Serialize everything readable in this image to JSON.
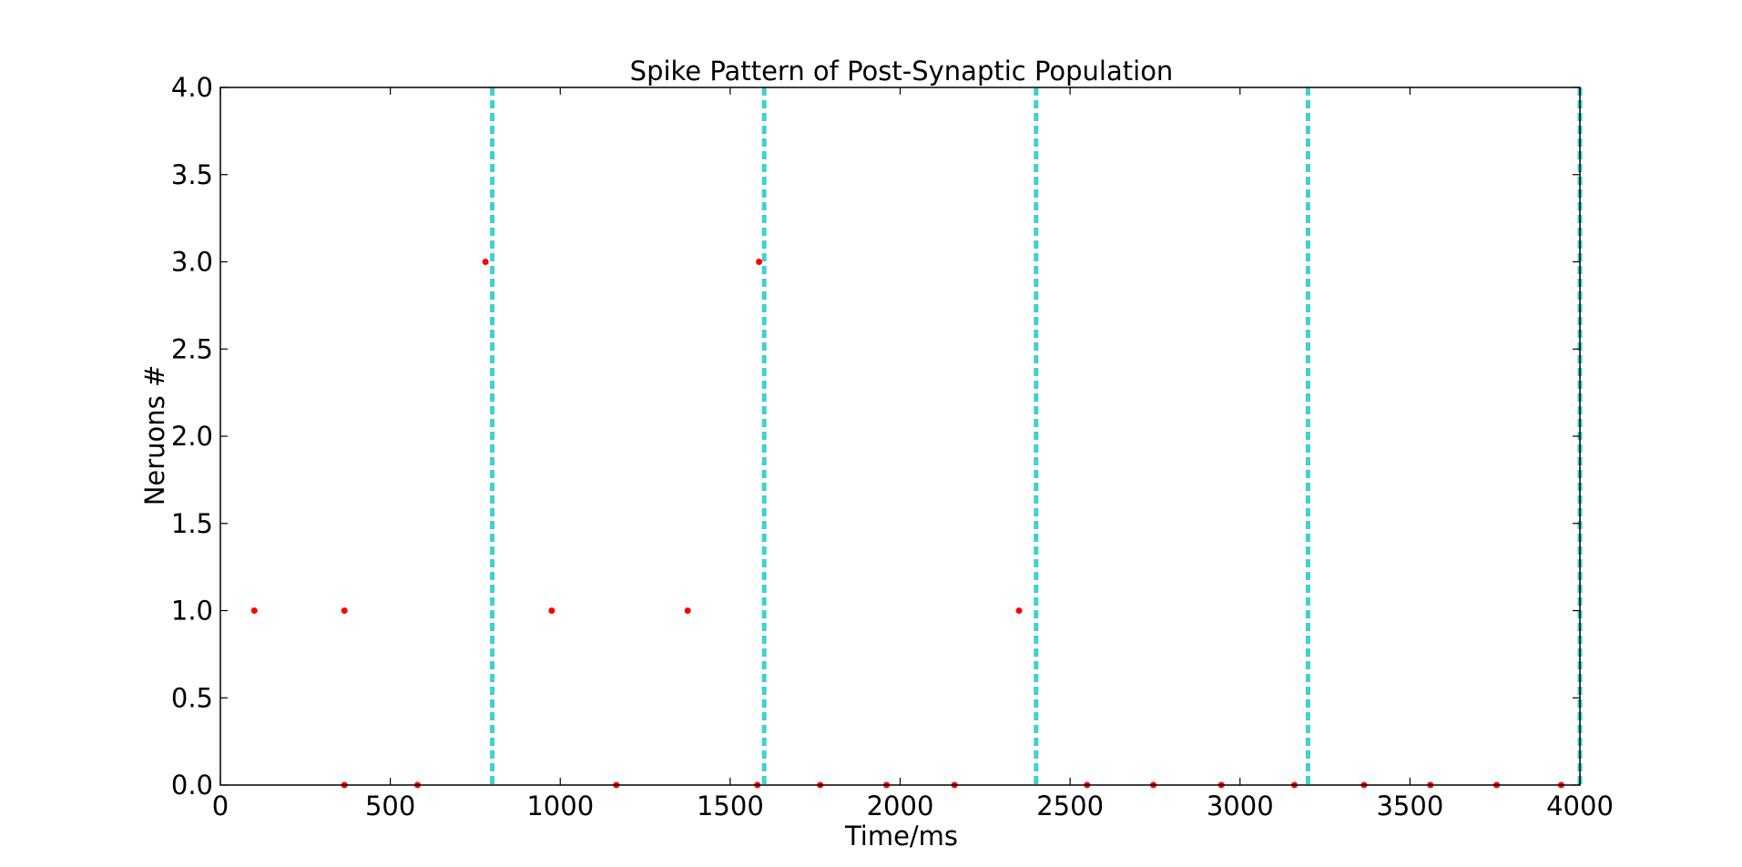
{
  "chart_data": {
    "type": "scatter",
    "title": "Spike Pattern of Post-Synaptic Population",
    "xlabel": "Time/ms",
    "ylabel": "Neruons #",
    "xlim": [
      0,
      4000
    ],
    "ylim": [
      0,
      4
    ],
    "x_ticks": [
      "0",
      "500",
      "1000",
      "1500",
      "2000",
      "2500",
      "3000",
      "3500",
      "4000"
    ],
    "y_ticks": [
      "0.0",
      "0.5",
      "1.0",
      "1.5",
      "2.0",
      "2.5",
      "3.0",
      "3.5",
      "4.0"
    ],
    "grid": false,
    "series": [
      {
        "marker_color": "#ff0000",
        "points": [
          {
            "x": 100,
            "y": 1
          },
          {
            "x": 365,
            "y": 1
          },
          {
            "x": 780,
            "y": 3
          },
          {
            "x": 975,
            "y": 1
          },
          {
            "x": 1375,
            "y": 1
          },
          {
            "x": 1585,
            "y": 3
          },
          {
            "x": 2350,
            "y": 1
          },
          {
            "x": 365,
            "y": 0
          },
          {
            "x": 580,
            "y": 0
          },
          {
            "x": 1165,
            "y": 0
          },
          {
            "x": 1580,
            "y": 0
          },
          {
            "x": 1765,
            "y": 0
          },
          {
            "x": 1960,
            "y": 0
          },
          {
            "x": 2160,
            "y": 0
          },
          {
            "x": 2550,
            "y": 0
          },
          {
            "x": 2745,
            "y": 0
          },
          {
            "x": 2945,
            "y": 0
          },
          {
            "x": 3160,
            "y": 0
          },
          {
            "x": 3365,
            "y": 0
          },
          {
            "x": 3560,
            "y": 0
          },
          {
            "x": 3755,
            "y": 0
          },
          {
            "x": 3945,
            "y": 0
          }
        ]
      }
    ],
    "vertical_lines": {
      "x": [
        800,
        1600,
        2400,
        3200,
        4000
      ],
      "color": "#40d0d0",
      "style": "dashed"
    }
  }
}
